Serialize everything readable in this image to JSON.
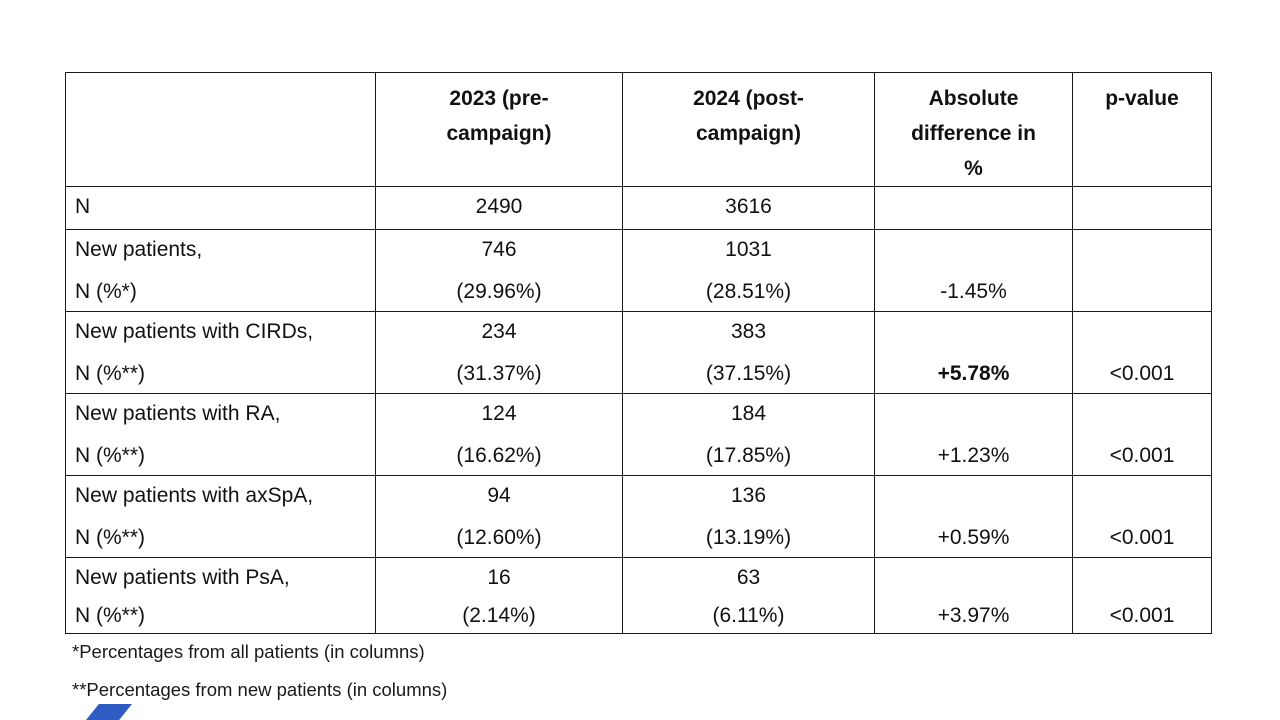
{
  "accent_color": "#2e5cc2",
  "table": {
    "header": {
      "label": [
        ""
      ],
      "pre": [
        "2023 (pre-",
        "campaign)"
      ],
      "post": [
        "2024 (post-",
        "campaign)"
      ],
      "diff": [
        "Absolute",
        "difference in",
        "%"
      ],
      "p": [
        "p-value"
      ]
    },
    "rows": [
      {
        "label": [
          "N",
          ""
        ],
        "pre": [
          "2490",
          ""
        ],
        "post": [
          "3616",
          ""
        ],
        "diff": [
          "",
          ""
        ],
        "p": [
          "",
          ""
        ]
      },
      {
        "label": [
          "New patients,",
          "N (%*)"
        ],
        "pre": [
          "746",
          "(29.96%)"
        ],
        "post": [
          "1031",
          "(28.51%)"
        ],
        "diff": [
          "",
          "-1.45%"
        ],
        "p": [
          "",
          ""
        ]
      },
      {
        "label": [
          "New patients with CIRDs,",
          "N (%**)"
        ],
        "pre": [
          "234",
          "(31.37%)"
        ],
        "post": [
          "383",
          "(37.15%)"
        ],
        "diff": [
          "",
          "+5.78%"
        ],
        "p": [
          "",
          "<0.001"
        ]
      },
      {
        "label": [
          "New patients with RA,",
          "N (%**)"
        ],
        "pre": [
          "124",
          "(16.62%)"
        ],
        "post": [
          "184",
          "(17.85%)"
        ],
        "diff": [
          "",
          "+1.23%"
        ],
        "p": [
          "",
          "<0.001"
        ]
      },
      {
        "label": [
          "New patients with axSpA,",
          "N (%**)"
        ],
        "pre": [
          "94",
          "(12.60%)"
        ],
        "post": [
          "136",
          "(13.19%)"
        ],
        "diff": [
          "",
          "+0.59%"
        ],
        "p": [
          "",
          "<0.001"
        ]
      },
      {
        "label": [
          "New patients with PsA,",
          "N (%**)"
        ],
        "pre": [
          "16",
          "(2.14%)"
        ],
        "post": [
          "63",
          "(6.11%)"
        ],
        "diff": [
          "",
          "+3.97%"
        ],
        "p": [
          "",
          "<0.001"
        ]
      }
    ]
  },
  "footnotes": [
    "*Percentages from all patients (in columns)",
    "**Percentages from new patients (in columns)"
  ]
}
